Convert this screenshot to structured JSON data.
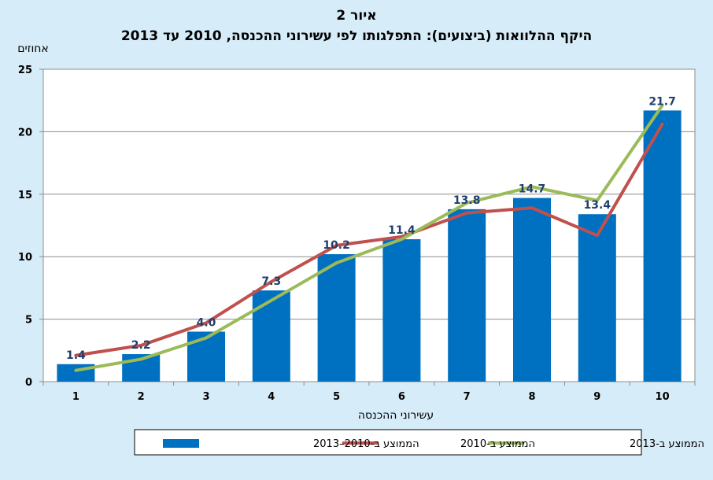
{
  "chart_data": {
    "type": "bar",
    "title": "איור 2",
    "subtitle": "היקף ההלוואות (ביצועים): התפלגותו לפי עשירוני ההכנסה, 2010 עד 2013",
    "ylabel": "אחוזים",
    "xlabel": "עשירוני ההכנסה",
    "categories": [
      "1",
      "2",
      "3",
      "4",
      "5",
      "6",
      "7",
      "8",
      "9",
      "10"
    ],
    "ylim": [
      0,
      25
    ],
    "yticks": [
      0,
      5,
      10,
      15,
      20,
      25
    ],
    "grid": true,
    "legend_position": "bottom",
    "series": [
      {
        "name": "הממוצע ב-2010–2013",
        "kind": "bar",
        "color": "#0070c0",
        "values": [
          1.4,
          2.2,
          4.0,
          7.3,
          10.2,
          11.4,
          13.8,
          14.7,
          13.4,
          21.7
        ],
        "labels": [
          "1.4",
          "2.2",
          "4.0",
          "7.3",
          "10.2",
          "11.4",
          "13.8",
          "14.7",
          "13.4",
          "21.7"
        ]
      },
      {
        "name": "הממוצע ב-2010",
        "kind": "line",
        "color": "#c0504d",
        "values": [
          2.1,
          2.9,
          4.7,
          8.0,
          10.9,
          11.6,
          13.5,
          13.9,
          11.7,
          20.6
        ]
      },
      {
        "name": "הממוצע ב-2013",
        "kind": "line",
        "color": "#9bbb59",
        "values": [
          0.9,
          1.8,
          3.5,
          6.5,
          9.5,
          11.4,
          14.3,
          15.6,
          14.5,
          22.1
        ]
      }
    ]
  }
}
